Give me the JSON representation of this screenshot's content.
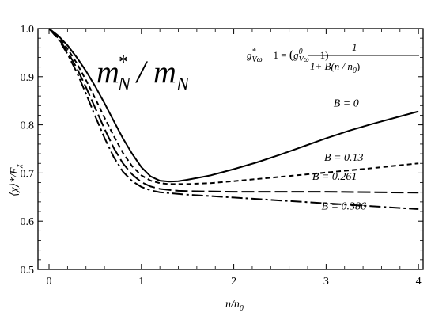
{
  "chart_data": {
    "type": "line",
    "title_main": "m",
    "title_main_sup": "*",
    "title_main_sub": "N",
    "title_slash": "/",
    "title_den": "m",
    "title_den_sub": "N",
    "formula": {
      "lhs": "g",
      "lhs_sup": "*",
      "lhs_sub": "Vω",
      "lhs_rest": " − 1 = ",
      "paren_open": "(",
      "rhs_g": "g",
      "rhs_sup": "0",
      "rhs_sub": "Vω",
      "rhs_rest": " − 1)",
      "numerator": "1",
      "denominator": "1+ B(n / n",
      "denominator_sub": "0",
      "denominator_close": ")"
    },
    "xlabel": "n/n",
    "xlabel_sub": "0",
    "ylabel": "⟨χ⟩*/F",
    "ylabel_sub": "χ",
    "xlim": [
      -0.12,
      4.05
    ],
    "ylim": [
      0.5,
      1.0
    ],
    "xticks": [
      0,
      1,
      2,
      3,
      4
    ],
    "yticks": [
      0.5,
      0.6,
      0.7,
      0.8,
      0.9,
      1.0
    ],
    "ytick_labels": [
      "0.5",
      "0.6",
      "0.7",
      "0.8",
      "0.9",
      "1.0"
    ],
    "grid": false,
    "series": [
      {
        "name": "B = 0",
        "dash": "solid",
        "points": [
          [
            0,
            1.0
          ],
          [
            0.1,
            0.985
          ],
          [
            0.2,
            0.965
          ],
          [
            0.3,
            0.94
          ],
          [
            0.4,
            0.912
          ],
          [
            0.5,
            0.88
          ],
          [
            0.6,
            0.845
          ],
          [
            0.7,
            0.808
          ],
          [
            0.8,
            0.772
          ],
          [
            0.9,
            0.74
          ],
          [
            1.0,
            0.712
          ],
          [
            1.1,
            0.693
          ],
          [
            1.2,
            0.684
          ],
          [
            1.3,
            0.682
          ],
          [
            1.4,
            0.683
          ],
          [
            1.5,
            0.686
          ],
          [
            1.75,
            0.695
          ],
          [
            2.0,
            0.708
          ],
          [
            2.25,
            0.722
          ],
          [
            2.5,
            0.738
          ],
          [
            2.75,
            0.755
          ],
          [
            3.0,
            0.772
          ],
          [
            3.25,
            0.788
          ],
          [
            3.5,
            0.802
          ],
          [
            3.75,
            0.815
          ],
          [
            4.0,
            0.828
          ]
        ]
      },
      {
        "name": "B = 0.13",
        "dash": "short",
        "points": [
          [
            0,
            1.0
          ],
          [
            0.1,
            0.983
          ],
          [
            0.2,
            0.958
          ],
          [
            0.3,
            0.928
          ],
          [
            0.4,
            0.893
          ],
          [
            0.5,
            0.855
          ],
          [
            0.6,
            0.815
          ],
          [
            0.7,
            0.777
          ],
          [
            0.8,
            0.742
          ],
          [
            0.9,
            0.714
          ],
          [
            1.0,
            0.695
          ],
          [
            1.1,
            0.684
          ],
          [
            1.2,
            0.679
          ],
          [
            1.3,
            0.677
          ],
          [
            1.5,
            0.677
          ],
          [
            1.75,
            0.679
          ],
          [
            2.0,
            0.683
          ],
          [
            2.5,
            0.692
          ],
          [
            3.0,
            0.701
          ],
          [
            3.5,
            0.71
          ],
          [
            4.0,
            0.72
          ]
        ]
      },
      {
        "name": "B = 0.261",
        "dash": "long",
        "points": [
          [
            0,
            1.0
          ],
          [
            0.1,
            0.98
          ],
          [
            0.2,
            0.952
          ],
          [
            0.3,
            0.918
          ],
          [
            0.4,
            0.878
          ],
          [
            0.5,
            0.835
          ],
          [
            0.6,
            0.792
          ],
          [
            0.7,
            0.752
          ],
          [
            0.8,
            0.72
          ],
          [
            0.9,
            0.697
          ],
          [
            1.0,
            0.681
          ],
          [
            1.1,
            0.672
          ],
          [
            1.2,
            0.667
          ],
          [
            1.4,
            0.663
          ],
          [
            1.6,
            0.662
          ],
          [
            2.0,
            0.661
          ],
          [
            2.5,
            0.661
          ],
          [
            3.0,
            0.661
          ],
          [
            3.5,
            0.66
          ],
          [
            4.0,
            0.659
          ]
        ]
      },
      {
        "name": "B = 0.386",
        "dash": "dashdot",
        "points": [
          [
            0,
            1.0
          ],
          [
            0.1,
            0.978
          ],
          [
            0.2,
            0.947
          ],
          [
            0.3,
            0.909
          ],
          [
            0.4,
            0.865
          ],
          [
            0.5,
            0.818
          ],
          [
            0.6,
            0.773
          ],
          [
            0.7,
            0.733
          ],
          [
            0.8,
            0.703
          ],
          [
            0.9,
            0.683
          ],
          [
            1.0,
            0.671
          ],
          [
            1.1,
            0.664
          ],
          [
            1.2,
            0.66
          ],
          [
            1.5,
            0.655
          ],
          [
            2.0,
            0.649
          ],
          [
            2.5,
            0.643
          ],
          [
            3.0,
            0.637
          ],
          [
            3.5,
            0.631
          ],
          [
            4.0,
            0.625
          ]
        ]
      }
    ],
    "labels": [
      {
        "text": "B = 0",
        "x": 3.08,
        "y": 0.838
      },
      {
        "text": "B = 0.13",
        "x": 2.98,
        "y": 0.725
      },
      {
        "text": "B = 0.261",
        "x": 2.85,
        "y": 0.686
      },
      {
        "text": "B = 0.386",
        "x": 2.95,
        "y": 0.624
      }
    ]
  }
}
